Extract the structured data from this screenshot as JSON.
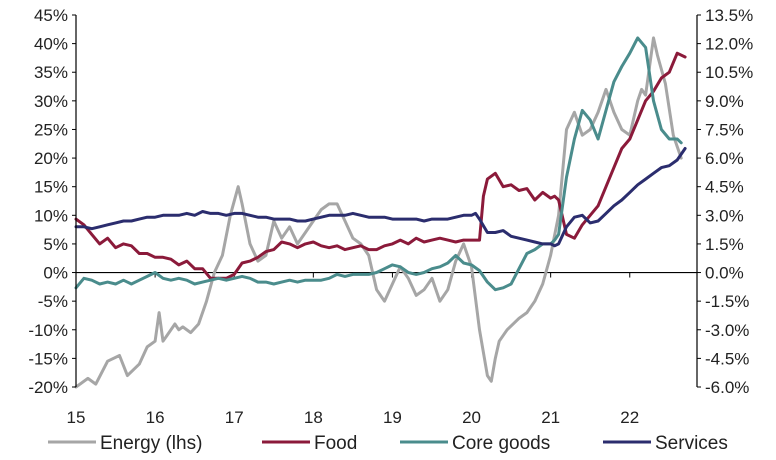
{
  "chart_data": {
    "type": "line",
    "title": "",
    "xlabel": "",
    "x_tick_labels": [
      "15",
      "16",
      "17",
      "18",
      "19",
      "20",
      "21",
      "22"
    ],
    "x_range": [
      2015.0,
      2022.85
    ],
    "y_left": {
      "range": [
        -20,
        45
      ],
      "step": 5,
      "tick_labels": [
        "45%",
        "40%",
        "35%",
        "30%",
        "25%",
        "20%",
        "15%",
        "10%",
        "5%",
        "0%",
        "-5%",
        "-10%",
        "-15%",
        "-20%"
      ]
    },
    "y_right": {
      "range": [
        -6.0,
        13.5
      ],
      "step": 1.5,
      "tick_labels": [
        "13.5%",
        "12.0%",
        "10.5%",
        "9.0%",
        "7.5%",
        "6.0%",
        "4.5%",
        "3.0%",
        "1.5%",
        "0.0%",
        "-1.5%",
        "-3.0%",
        "-4.5%",
        "-6.0%"
      ]
    },
    "legend_position": "bottom",
    "series": [
      {
        "name": "Energy (lhs)",
        "axis": "left",
        "color": "#a6a6a6",
        "x": [
          2015.0,
          2015.15,
          2015.25,
          2015.4,
          2015.55,
          2015.65,
          2015.8,
          2015.9,
          2016.0,
          2016.05,
          2016.1,
          2016.15,
          2016.25,
          2016.3,
          2016.35,
          2016.45,
          2016.55,
          2016.65,
          2016.75,
          2016.85,
          2016.95,
          2017.05,
          2017.1,
          2017.2,
          2017.3,
          2017.4,
          2017.5,
          2017.6,
          2017.7,
          2017.8,
          2017.9,
          2018.0,
          2018.1,
          2018.2,
          2018.3,
          2018.4,
          2018.5,
          2018.6,
          2018.7,
          2018.8,
          2018.9,
          2019.0,
          2019.1,
          2019.2,
          2019.3,
          2019.4,
          2019.5,
          2019.6,
          2019.7,
          2019.8,
          2019.9,
          2020.0,
          2020.1,
          2020.2,
          2020.25,
          2020.3,
          2020.35,
          2020.45,
          2020.6,
          2020.7,
          2020.8,
          2020.9,
          2021.0,
          2021.1,
          2021.2,
          2021.3,
          2021.4,
          2021.5,
          2021.6,
          2021.7,
          2021.8,
          2021.9,
          2022.0,
          2022.1,
          2022.15,
          2022.2,
          2022.3,
          2022.35,
          2022.45,
          2022.55,
          2022.65
        ],
        "values": [
          -20,
          -18.5,
          -19.5,
          -15.5,
          -14.5,
          -18,
          -16,
          -13,
          -12,
          -7,
          -12,
          -11,
          -9,
          -10,
          -9.5,
          -10.5,
          -9,
          -5,
          0,
          3,
          10,
          15,
          12,
          5,
          2,
          3,
          9,
          6,
          8,
          5,
          7,
          9,
          11,
          12,
          12,
          9,
          6,
          5,
          3,
          -3,
          -5,
          -2,
          1,
          -1,
          -4,
          -3,
          -1,
          -5,
          -3,
          2,
          5,
          1,
          -10,
          -18,
          -19,
          -15,
          -12,
          -10,
          -8,
          -7,
          -5,
          -2,
          3,
          10,
          25,
          28,
          24,
          25,
          28,
          32,
          28,
          25,
          24,
          30,
          32,
          31,
          41,
          38,
          33,
          24,
          20
        ]
      },
      {
        "name": "Food",
        "axis": "right",
        "color": "#8b1a3a",
        "x": [
          2015.0,
          2015.1,
          2015.2,
          2015.3,
          2015.4,
          2015.5,
          2015.6,
          2015.7,
          2015.8,
          2015.9,
          2016.0,
          2016.1,
          2016.2,
          2016.3,
          2016.4,
          2016.5,
          2016.6,
          2016.7,
          2016.8,
          2016.9,
          2017.0,
          2017.1,
          2017.2,
          2017.3,
          2017.4,
          2017.5,
          2017.6,
          2017.7,
          2017.8,
          2017.9,
          2018.0,
          2018.1,
          2018.2,
          2018.3,
          2018.4,
          2018.5,
          2018.6,
          2018.7,
          2018.8,
          2018.9,
          2019.0,
          2019.1,
          2019.2,
          2019.3,
          2019.4,
          2019.5,
          2019.6,
          2019.7,
          2019.8,
          2019.9,
          2020.0,
          2020.1,
          2020.15,
          2020.2,
          2020.3,
          2020.4,
          2020.5,
          2020.6,
          2020.7,
          2020.8,
          2020.9,
          2021.0,
          2021.05,
          2021.1,
          2021.2,
          2021.3,
          2021.4,
          2021.5,
          2021.6,
          2021.7,
          2021.8,
          2021.9,
          2022.0,
          2022.1,
          2022.2,
          2022.3,
          2022.4,
          2022.5,
          2022.6,
          2022.7
        ],
        "values": [
          2.8,
          2.5,
          2.0,
          1.5,
          1.8,
          1.3,
          1.5,
          1.4,
          1.0,
          1.0,
          0.8,
          0.8,
          0.7,
          0.4,
          0.6,
          0.2,
          0.2,
          -0.3,
          -0.3,
          -0.3,
          -0.1,
          0.5,
          0.6,
          0.8,
          1.1,
          1.2,
          1.6,
          1.5,
          1.3,
          1.5,
          1.6,
          1.4,
          1.3,
          1.4,
          1.2,
          1.3,
          1.4,
          1.2,
          1.2,
          1.4,
          1.5,
          1.7,
          1.5,
          1.8,
          1.6,
          1.7,
          1.8,
          1.7,
          1.6,
          1.7,
          1.7,
          1.7,
          4.0,
          4.9,
          5.2,
          4.5,
          4.6,
          4.3,
          4.4,
          3.8,
          4.2,
          3.9,
          4.0,
          3.8,
          2.0,
          1.8,
          2.5,
          3.0,
          3.5,
          4.5,
          5.5,
          6.5,
          7.0,
          8.0,
          9.0,
          9.5,
          10.2,
          10.5,
          11.5,
          11.3
        ]
      },
      {
        "name": "Core goods",
        "axis": "right",
        "color": "#4a8c8c",
        "x": [
          2015.0,
          2015.1,
          2015.2,
          2015.3,
          2015.4,
          2015.5,
          2015.6,
          2015.7,
          2015.8,
          2015.9,
          2016.0,
          2016.1,
          2016.2,
          2016.3,
          2016.4,
          2016.5,
          2016.6,
          2016.7,
          2016.8,
          2016.9,
          2017.0,
          2017.1,
          2017.2,
          2017.3,
          2017.4,
          2017.5,
          2017.6,
          2017.7,
          2017.8,
          2017.9,
          2018.0,
          2018.1,
          2018.2,
          2018.3,
          2018.4,
          2018.5,
          2018.6,
          2018.7,
          2018.8,
          2018.9,
          2019.0,
          2019.1,
          2019.2,
          2019.3,
          2019.4,
          2019.5,
          2019.6,
          2019.7,
          2019.8,
          2019.9,
          2020.0,
          2020.1,
          2020.2,
          2020.3,
          2020.4,
          2020.5,
          2020.6,
          2020.7,
          2020.8,
          2020.9,
          2021.0,
          2021.05,
          2021.1,
          2021.2,
          2021.3,
          2021.4,
          2021.5,
          2021.6,
          2021.7,
          2021.8,
          2021.9,
          2022.0,
          2022.1,
          2022.2,
          2022.3,
          2022.4,
          2022.5,
          2022.6,
          2022.65
        ],
        "values": [
          -0.8,
          -0.3,
          -0.4,
          -0.6,
          -0.5,
          -0.6,
          -0.4,
          -0.6,
          -0.4,
          -0.2,
          0.0,
          -0.3,
          -0.4,
          -0.3,
          -0.4,
          -0.6,
          -0.5,
          -0.4,
          -0.3,
          -0.4,
          -0.3,
          -0.2,
          -0.3,
          -0.5,
          -0.5,
          -0.6,
          -0.5,
          -0.4,
          -0.5,
          -0.4,
          -0.4,
          -0.4,
          -0.3,
          -0.1,
          -0.2,
          -0.1,
          -0.1,
          -0.1,
          0.0,
          0.2,
          0.4,
          0.3,
          0.0,
          -0.1,
          0.0,
          0.2,
          0.3,
          0.5,
          0.9,
          0.5,
          0.4,
          0.1,
          -0.5,
          -0.9,
          -0.8,
          -0.6,
          0.2,
          1.0,
          1.2,
          1.5,
          1.5,
          1.7,
          2.0,
          5.0,
          7.0,
          8.5,
          8.0,
          7.0,
          8.5,
          10.0,
          10.8,
          11.5,
          12.3,
          11.8,
          9.0,
          7.5,
          7.0,
          7.0,
          6.8
        ]
      },
      {
        "name": "Services",
        "axis": "right",
        "color": "#2b2d6e",
        "x": [
          2015.0,
          2015.1,
          2015.2,
          2015.3,
          2015.4,
          2015.5,
          2015.6,
          2015.7,
          2015.8,
          2015.9,
          2016.0,
          2016.1,
          2016.2,
          2016.3,
          2016.4,
          2016.5,
          2016.6,
          2016.7,
          2016.8,
          2016.9,
          2017.0,
          2017.1,
          2017.2,
          2017.3,
          2017.4,
          2017.5,
          2017.6,
          2017.7,
          2017.8,
          2017.9,
          2018.0,
          2018.1,
          2018.2,
          2018.3,
          2018.4,
          2018.5,
          2018.6,
          2018.7,
          2018.8,
          2018.9,
          2019.0,
          2019.1,
          2019.2,
          2019.3,
          2019.4,
          2019.5,
          2019.6,
          2019.7,
          2019.8,
          2019.9,
          2020.0,
          2020.05,
          2020.1,
          2020.2,
          2020.3,
          2020.4,
          2020.5,
          2020.6,
          2020.7,
          2020.8,
          2020.9,
          2021.0,
          2021.05,
          2021.1,
          2021.2,
          2021.3,
          2021.4,
          2021.5,
          2021.6,
          2021.7,
          2021.8,
          2021.9,
          2022.0,
          2022.1,
          2022.2,
          2022.3,
          2022.4,
          2022.5,
          2022.6,
          2022.7
        ],
        "values": [
          2.4,
          2.4,
          2.3,
          2.4,
          2.5,
          2.6,
          2.7,
          2.7,
          2.8,
          2.9,
          2.9,
          3.0,
          3.0,
          3.0,
          3.1,
          3.0,
          3.2,
          3.1,
          3.1,
          3.0,
          3.1,
          3.1,
          3.0,
          2.9,
          2.9,
          2.8,
          2.8,
          2.8,
          2.7,
          2.7,
          2.8,
          2.9,
          3.0,
          3.0,
          3.0,
          3.1,
          3.0,
          2.9,
          2.9,
          2.9,
          2.8,
          2.8,
          2.8,
          2.8,
          2.7,
          2.8,
          2.8,
          2.8,
          2.9,
          3.0,
          3.0,
          3.1,
          2.8,
          2.1,
          2.1,
          2.2,
          1.9,
          1.8,
          1.7,
          1.6,
          1.5,
          1.5,
          1.4,
          1.5,
          2.4,
          2.9,
          3.0,
          2.6,
          2.7,
          3.1,
          3.5,
          3.8,
          4.2,
          4.6,
          4.9,
          5.2,
          5.5,
          5.6,
          5.9,
          6.5
        ]
      }
    ]
  }
}
